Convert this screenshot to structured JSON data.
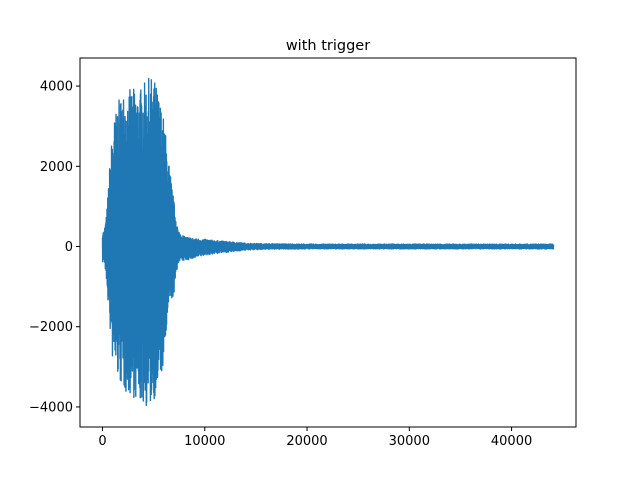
{
  "chart_data": {
    "type": "line",
    "title": "with trigger",
    "xlabel": "",
    "ylabel": "",
    "xlim": [
      -2200,
      46300
    ],
    "ylim": [
      -4500,
      4700
    ],
    "x_ticks": [
      0,
      10000,
      20000,
      30000,
      40000
    ],
    "x_tick_labels": [
      "0",
      "10000",
      "20000",
      "30000",
      "40000"
    ],
    "y_ticks": [
      -4000,
      -2000,
      0,
      2000,
      4000
    ],
    "y_tick_labels": [
      "−4000",
      "−2000",
      "0",
      "2000",
      "4000"
    ],
    "grid": false,
    "legend": "none",
    "series": [
      {
        "color": "#1f77b4",
        "x_start": 0,
        "x_end": 44100,
        "envelope": {
          "x": [
            0,
            150,
            400,
            700,
            1000,
            1500,
            2000,
            2500,
            3000,
            3500,
            4000,
            4500,
            5000,
            5500,
            6000,
            6500,
            7000,
            7400,
            8000,
            9000,
            10000,
            11000,
            12000,
            13000,
            14000,
            16000,
            20000,
            30000,
            40000,
            44100
          ],
          "upper": [
            400,
            380,
            800,
            2000,
            3000,
            3600,
            3850,
            3900,
            3950,
            3900,
            4050,
            4200,
            4250,
            3800,
            3200,
            2100,
            1100,
            400,
            250,
            200,
            180,
            150,
            130,
            110,
            80,
            70,
            60,
            60,
            60,
            60
          ],
          "lower": [
            -400,
            -350,
            -900,
            -2000,
            -2900,
            -3300,
            -3600,
            -3700,
            -3750,
            -3900,
            -3950,
            -4050,
            -3850,
            -3500,
            -3000,
            -1500,
            -1200,
            -400,
            -350,
            -300,
            -220,
            -180,
            -150,
            -120,
            -90,
            -70,
            -60,
            -60,
            -60,
            -60
          ]
        }
      }
    ]
  }
}
